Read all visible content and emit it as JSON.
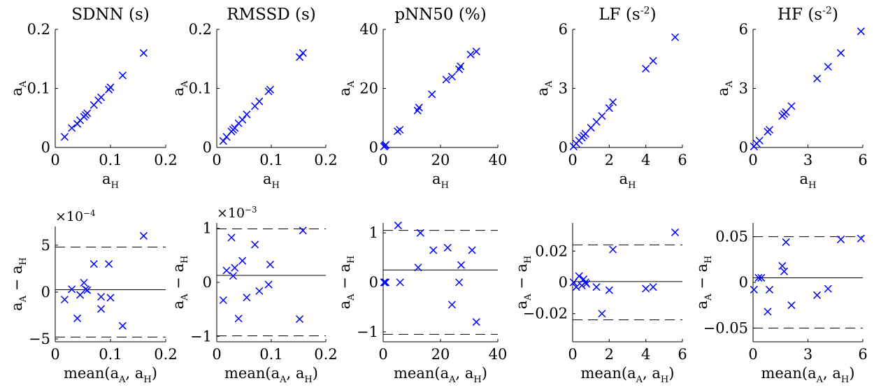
{
  "chart_data": [
    {
      "type": "scatter",
      "title": "SDNN (s)",
      "xlabel": "a_H",
      "ylabel": "a_A",
      "xlim": [
        0,
        0.2
      ],
      "ylim": [
        0,
        0.2
      ],
      "xticks": [
        0,
        0.1,
        0.2
      ],
      "xtick_labels": [
        "0",
        "0.1",
        "0.2"
      ],
      "yticks": [
        0,
        0.1,
        0.2
      ],
      "ytick_labels": [
        "0",
        "0.1",
        "0.2"
      ],
      "x": [
        0.017,
        0.03,
        0.04,
        0.045,
        0.052,
        0.055,
        0.058,
        0.07,
        0.078,
        0.083,
        0.097,
        0.1,
        0.122,
        0.16
      ],
      "y": [
        0.018,
        0.033,
        0.04,
        0.046,
        0.052,
        0.055,
        0.058,
        0.072,
        0.08,
        0.085,
        0.098,
        0.102,
        0.122,
        0.16
      ]
    },
    {
      "type": "scatter",
      "title": "RMSSD (s)",
      "xlabel": "a_H",
      "ylabel": "a_A",
      "xlim": [
        0,
        0.2
      ],
      "ylim": [
        0,
        0.2
      ],
      "xticks": [
        0,
        0.1,
        0.2
      ],
      "xtick_labels": [
        "0",
        "0.1",
        "0.2"
      ],
      "yticks": [
        0,
        0.1,
        0.2
      ],
      "ytick_labels": [
        "0",
        "0.1",
        "0.2"
      ],
      "x": [
        0.012,
        0.018,
        0.027,
        0.03,
        0.033,
        0.04,
        0.047,
        0.055,
        0.07,
        0.078,
        0.095,
        0.098,
        0.152,
        0.158
      ],
      "y": [
        0.011,
        0.018,
        0.027,
        0.03,
        0.033,
        0.041,
        0.047,
        0.056,
        0.07,
        0.078,
        0.095,
        0.098,
        0.153,
        0.16
      ]
    },
    {
      "type": "scatter",
      "title": "pNN50 (%)",
      "xlabel": "a_H",
      "ylabel": "a_A",
      "xlim": [
        0,
        40
      ],
      "ylim": [
        0,
        40
      ],
      "xticks": [
        0,
        20,
        40
      ],
      "xtick_labels": [
        "0",
        "20",
        "40"
      ],
      "yticks": [
        0,
        20,
        40
      ],
      "ytick_labels": [
        "0",
        "20",
        "40"
      ],
      "x": [
        0.3,
        0.6,
        0.9,
        5.0,
        5.8,
        12.0,
        12.5,
        17.0,
        22.0,
        24.0,
        26.5,
        27.0,
        30.5,
        32.5
      ],
      "y": [
        0.3,
        0.6,
        0.9,
        5.5,
        6.0,
        12.5,
        13.5,
        18.0,
        23.0,
        24.0,
        26.5,
        27.5,
        31.5,
        32.5
      ]
    },
    {
      "type": "scatter",
      "title": "LF (s^-2)",
      "xlabel": "a_H",
      "ylabel": "a_A",
      "xlim": [
        0,
        6
      ],
      "ylim": [
        0,
        6
      ],
      "xticks": [
        0,
        2,
        4,
        6
      ],
      "xtick_labels": [
        "0",
        "2",
        "4",
        "6"
      ],
      "yticks": [
        0,
        3,
        6
      ],
      "ytick_labels": [
        "0",
        "3",
        "6"
      ],
      "x": [
        0.05,
        0.2,
        0.35,
        0.5,
        0.6,
        0.7,
        1.0,
        1.3,
        1.6,
        2.0,
        2.2,
        4.0,
        4.4,
        5.6
      ],
      "y": [
        0.05,
        0.2,
        0.35,
        0.5,
        0.6,
        0.7,
        1.0,
        1.3,
        1.6,
        2.0,
        2.3,
        4.0,
        4.4,
        5.6
      ]
    },
    {
      "type": "scatter",
      "title": "HF (s^-2)",
      "xlabel": "a_H",
      "ylabel": "a_A",
      "xlim": [
        0,
        6
      ],
      "ylim": [
        0,
        6
      ],
      "xticks": [
        0,
        3,
        6
      ],
      "xtick_labels": [
        "0",
        "3",
        "6"
      ],
      "yticks": [
        0,
        3,
        6
      ],
      "ytick_labels": [
        "0",
        "3",
        "6"
      ],
      "x": [
        0.05,
        0.2,
        0.35,
        0.8,
        0.9,
        1.6,
        1.7,
        1.8,
        2.1,
        3.5,
        4.1,
        4.8,
        5.9
      ],
      "y": [
        0.05,
        0.2,
        0.35,
        0.8,
        0.9,
        1.6,
        1.7,
        1.8,
        2.1,
        3.5,
        4.1,
        4.8,
        5.9
      ]
    },
    {
      "type": "scatter",
      "title": "",
      "xlabel": "mean(a_A, a_H)",
      "ylabel": "a_A − a_H",
      "y_multiplier": "×10^−4",
      "xlim": [
        0,
        0.2
      ],
      "ylim": [
        -5.3,
        7
      ],
      "xticks": [
        0,
        0.1,
        0.2
      ],
      "xtick_labels": [
        "0",
        "0.1",
        "0.2"
      ],
      "yticks": [
        -5,
        0,
        5
      ],
      "ytick_labels": [
        "−5",
        "0",
        "5"
      ],
      "mean_line": 0.25,
      "limits_of_agreement": [
        -4.8,
        4.8
      ],
      "x": [
        0.017,
        0.03,
        0.04,
        0.045,
        0.052,
        0.055,
        0.058,
        0.07,
        0.083,
        0.083,
        0.097,
        0.1,
        0.122,
        0.16
      ],
      "y": [
        -0.8,
        0.3,
        -2.8,
        -0.3,
        1.0,
        0.3,
        0.2,
        3.0,
        -0.5,
        -1.8,
        3.0,
        -0.6,
        -3.6,
        6.0
      ]
    },
    {
      "type": "scatter",
      "title": "",
      "xlabel": "mean(a_A, a_H)",
      "ylabel": "a_A − a_H",
      "y_multiplier": "×10^−3",
      "xlim": [
        0,
        0.2
      ],
      "ylim": [
        -1.1,
        1.1
      ],
      "xticks": [
        0,
        0.1,
        0.2
      ],
      "xtick_labels": [
        "0",
        "0.1",
        "0.2"
      ],
      "yticks": [
        -1,
        0,
        1
      ],
      "ytick_labels": [
        "−1",
        "0",
        "1"
      ],
      "mean_line": 0.13,
      "limits_of_agreement": [
        -0.99,
        0.99
      ],
      "x": [
        0.012,
        0.018,
        0.027,
        0.03,
        0.033,
        0.04,
        0.047,
        0.055,
        0.07,
        0.078,
        0.095,
        0.098,
        0.152,
        0.158
      ],
      "y": [
        -0.33,
        0.22,
        0.83,
        0.12,
        0.27,
        -0.67,
        0.4,
        -0.28,
        0.7,
        -0.16,
        -0.04,
        0.33,
        -0.68,
        0.96
      ]
    },
    {
      "type": "scatter",
      "title": "",
      "xlabel": "mean(a_A, a_H)",
      "ylabel": "a_A − a_H",
      "xlim": [
        0,
        40
      ],
      "ylim": [
        -1.2,
        1.2
      ],
      "xticks": [
        0,
        20,
        40
      ],
      "xtick_labels": [
        "0",
        "20",
        "40"
      ],
      "yticks": [
        -1,
        0,
        1
      ],
      "ytick_labels": [
        "−1",
        "0",
        "1"
      ],
      "mean_line": 0.25,
      "limits_of_agreement": [
        -1.05,
        1.05
      ],
      "x": [
        0.3,
        0.6,
        0.9,
        5.2,
        5.9,
        12.2,
        13.0,
        17.5,
        22.5,
        24.0,
        26.5,
        27.2,
        31.0,
        32.5
      ],
      "y": [
        0.0,
        0.0,
        0.0,
        1.15,
        0.0,
        0.3,
        1.0,
        0.65,
        0.7,
        -0.45,
        0.0,
        0.35,
        0.65,
        -0.8
      ]
    },
    {
      "type": "scatter",
      "title": "",
      "xlabel": "mean(a_A, a_H)",
      "ylabel": "a_A − a_H",
      "xlim": [
        0,
        6
      ],
      "ylim": [
        -0.038,
        0.038
      ],
      "xticks": [
        0,
        2,
        4,
        6
      ],
      "xtick_labels": [
        "0",
        "2",
        "4",
        "6"
      ],
      "yticks": [
        -0.02,
        0,
        0.02
      ],
      "ytick_labels": [
        "−0.02",
        "0",
        "0.02"
      ],
      "mean_line": 0.0005,
      "limits_of_agreement": [
        -0.024,
        0.024
      ],
      "x": [
        0.05,
        0.2,
        0.35,
        0.5,
        0.6,
        0.7,
        0.75,
        1.3,
        1.6,
        2.0,
        2.2,
        4.0,
        4.4,
        5.6
      ],
      "y": [
        0.0,
        -0.003,
        0.004,
        -0.002,
        0.002,
        0.0,
        -0.001,
        -0.003,
        -0.02,
        -0.005,
        0.021,
        -0.004,
        -0.003,
        0.032
      ]
    },
    {
      "type": "scatter",
      "title": "",
      "xlabel": "mean(a_A, a_H)",
      "ylabel": "a_A − a_H",
      "xlim": [
        0,
        6
      ],
      "ylim": [
        -0.065,
        0.065
      ],
      "xticks": [
        0,
        3,
        6
      ],
      "xtick_labels": [
        "0",
        "3",
        "6"
      ],
      "yticks": [
        -0.05,
        0,
        0.05
      ],
      "ytick_labels": [
        "−0.05",
        "0",
        "0.05"
      ],
      "mean_line": 0.005,
      "limits_of_agreement": [
        -0.05,
        0.05
      ],
      "x": [
        0.05,
        0.3,
        0.45,
        0.8,
        0.9,
        1.6,
        1.7,
        1.8,
        2.1,
        3.5,
        4.1,
        4.8,
        5.9
      ],
      "y": [
        -0.008,
        0.005,
        0.005,
        -0.032,
        -0.008,
        0.018,
        0.012,
        0.044,
        -0.025,
        -0.014,
        -0.007,
        0.047,
        0.048
      ]
    }
  ]
}
